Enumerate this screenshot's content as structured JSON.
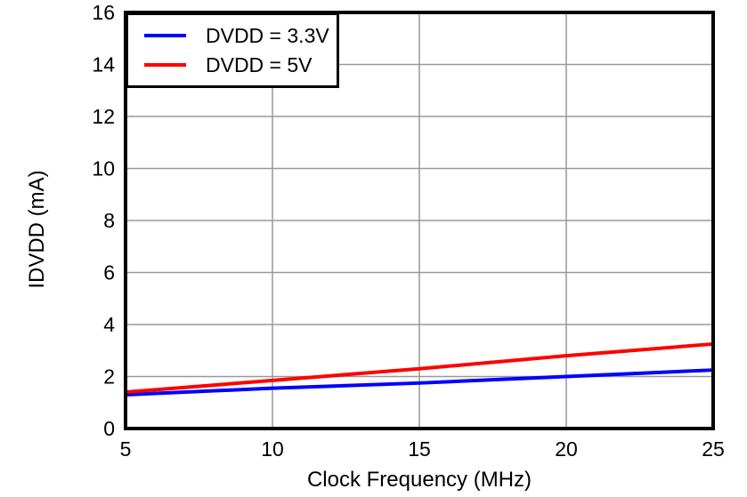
{
  "figure": {
    "background": "#ffffff",
    "frame_color": "#000000",
    "grid_color": "#999999",
    "text_color": "#000000"
  },
  "chart_data": {
    "type": "line",
    "title": "",
    "xlabel": "Clock Frequency (MHz)",
    "ylabel": "IDVDD (mA)",
    "xlim": [
      5,
      25
    ],
    "ylim": [
      0,
      16
    ],
    "xticks": [
      5,
      10,
      15,
      20,
      25
    ],
    "yticks": [
      0,
      2,
      4,
      6,
      8,
      10,
      12,
      14,
      16
    ],
    "grid": true,
    "legend_position": "top-left",
    "x": [
      5,
      10,
      15,
      20,
      25
    ],
    "series": [
      {
        "name": "DVDD = 3.3V",
        "color": "#0000ff",
        "values": [
          1.3,
          1.55,
          1.75,
          2.0,
          2.25
        ]
      },
      {
        "name": "DVDD = 5V",
        "color": "#ff0000",
        "values": [
          1.4,
          1.85,
          2.3,
          2.8,
          3.25
        ]
      }
    ]
  }
}
